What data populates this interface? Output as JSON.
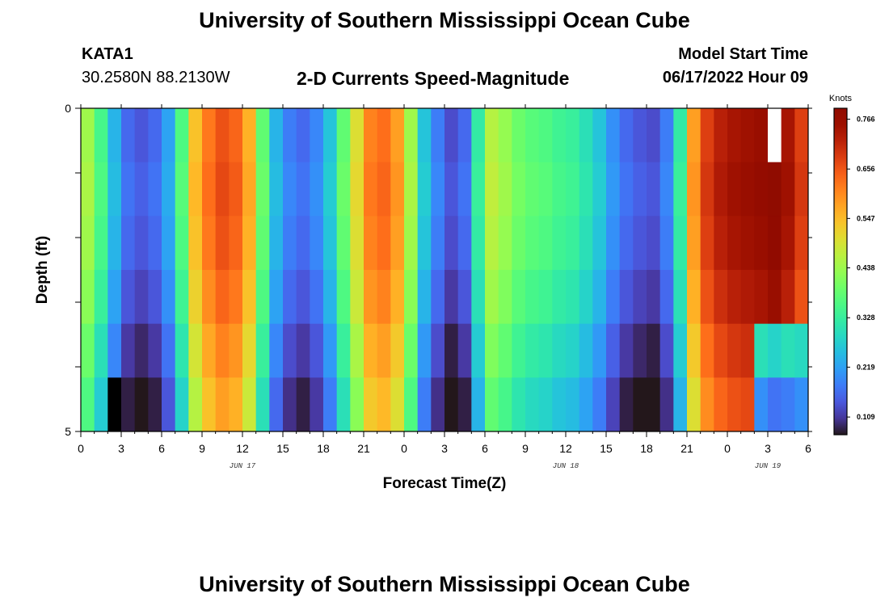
{
  "header": {
    "title": "University of Southern Mississippi Ocean Cube",
    "station": "KATA1",
    "coords": "30.2580N  88.2130W",
    "subtitle": "2-D Currents Speed-Magnitude",
    "model_start_label": "Model Start Time",
    "model_start_value": "06/17/2022 Hour 09"
  },
  "footer": {
    "title": "University of Southern Mississippi Ocean Cube"
  },
  "chart_data": {
    "type": "heatmap",
    "title": "2-D Currents Speed-Magnitude",
    "xlabel": "Forecast Time(Z)",
    "ylabel": "Depth (ft)",
    "x_tick_labels": [
      "0",
      "3",
      "6",
      "9",
      "12",
      "15",
      "18",
      "21",
      "0",
      "3",
      "6",
      "9",
      "12",
      "15",
      "18",
      "21",
      "0",
      "3",
      "6"
    ],
    "x_hours_from_jun17_00z": [
      0,
      3,
      6,
      9,
      12,
      15,
      18,
      21,
      24,
      27,
      30,
      33,
      36,
      39,
      42,
      45,
      48,
      51,
      54
    ],
    "day_labels": [
      {
        "label": "JUN 17",
        "hour": 12
      },
      {
        "label": "JUN 18",
        "hour": 36
      },
      {
        "label": "JUN 19",
        "hour": 51
      }
    ],
    "xlim_hours": [
      0,
      54
    ],
    "y_tick_labels": [
      "0",
      "5"
    ],
    "ylim_ft": [
      0,
      5
    ],
    "depth_rows_ft": [
      0,
      1,
      2,
      3,
      4,
      5
    ],
    "colorbar": {
      "unit": "Knots",
      "tick_labels": [
        "0.766",
        "0.656",
        "0.547",
        "0.438",
        "0.328",
        "0.219",
        "0.109"
      ],
      "vmin": 0.07,
      "vmax": 0.79,
      "colormap": "turbo"
    },
    "speed_profile_knots": [
      {
        "h": 0,
        "s": 0.42
      },
      {
        "h": 1,
        "s": 0.33
      },
      {
        "h": 2,
        "s": 0.22
      },
      {
        "h": 3,
        "s": 0.14
      },
      {
        "h": 4,
        "s": 0.12
      },
      {
        "h": 5,
        "s": 0.14
      },
      {
        "h": 6,
        "s": 0.2
      },
      {
        "h": 7,
        "s": 0.34
      },
      {
        "h": 8,
        "s": 0.52
      },
      {
        "h": 9,
        "s": 0.6
      },
      {
        "h": 10,
        "s": 0.64
      },
      {
        "h": 11,
        "s": 0.62
      },
      {
        "h": 12,
        "s": 0.54
      },
      {
        "h": 13,
        "s": 0.36
      },
      {
        "h": 14,
        "s": 0.22
      },
      {
        "h": 15,
        "s": 0.16
      },
      {
        "h": 16,
        "s": 0.14
      },
      {
        "h": 17,
        "s": 0.17
      },
      {
        "h": 18,
        "s": 0.24
      },
      {
        "h": 19,
        "s": 0.36
      },
      {
        "h": 20,
        "s": 0.48
      },
      {
        "h": 21,
        "s": 0.59
      },
      {
        "h": 22,
        "s": 0.61
      },
      {
        "h": 23,
        "s": 0.56
      },
      {
        "h": 24,
        "s": 0.42
      },
      {
        "h": 25,
        "s": 0.24
      },
      {
        "h": 26,
        "s": 0.16
      },
      {
        "h": 27,
        "s": 0.11
      },
      {
        "h": 28,
        "s": 0.14
      },
      {
        "h": 29,
        "s": 0.3
      },
      {
        "h": 30,
        "s": 0.44
      },
      {
        "h": 31,
        "s": 0.41
      },
      {
        "h": 32,
        "s": 0.37
      },
      {
        "h": 33,
        "s": 0.35
      },
      {
        "h": 34,
        "s": 0.34
      },
      {
        "h": 35,
        "s": 0.32
      },
      {
        "h": 36,
        "s": 0.31
      },
      {
        "h": 37,
        "s": 0.28
      },
      {
        "h": 38,
        "s": 0.24
      },
      {
        "h": 39,
        "s": 0.18
      },
      {
        "h": 40,
        "s": 0.14
      },
      {
        "h": 41,
        "s": 0.12
      },
      {
        "h": 42,
        "s": 0.11
      },
      {
        "h": 43,
        "s": 0.16
      },
      {
        "h": 44,
        "s": 0.3
      },
      {
        "h": 45,
        "s": 0.56
      },
      {
        "h": 46,
        "s": 0.66
      },
      {
        "h": 47,
        "s": 0.7
      },
      {
        "h": 48,
        "s": 0.72
      },
      {
        "h": 49,
        "s": 0.73
      },
      {
        "h": 50,
        "s": 0.74
      },
      {
        "h": 51,
        "s": 0.76
      },
      {
        "h": 52,
        "s": 0.72
      },
      {
        "h": 53,
        "s": 0.66
      }
    ],
    "surface_boost_by_depth_row": [
      0.02,
      0.03,
      0.02,
      0.0,
      -0.03,
      -0.06
    ],
    "late_period_bottom_values": {
      "row_4": [
        {
          "h": 50,
          "s": 0.3
        },
        {
          "h": 51,
          "s": 0.28
        },
        {
          "h": 52,
          "s": 0.3
        },
        {
          "h": 53,
          "s": 0.29
        }
      ],
      "row_5": [
        {
          "h": 50,
          "s": 0.2
        },
        {
          "h": 51,
          "s": 0.17
        },
        {
          "h": 52,
          "s": 0.18
        },
        {
          "h": 53,
          "s": 0.2
        }
      ]
    },
    "missing_cells": [
      {
        "h": 51,
        "row": 0,
        "color": "#ffffff"
      },
      {
        "h": 2,
        "row": 5,
        "color": "#000000"
      }
    ]
  }
}
